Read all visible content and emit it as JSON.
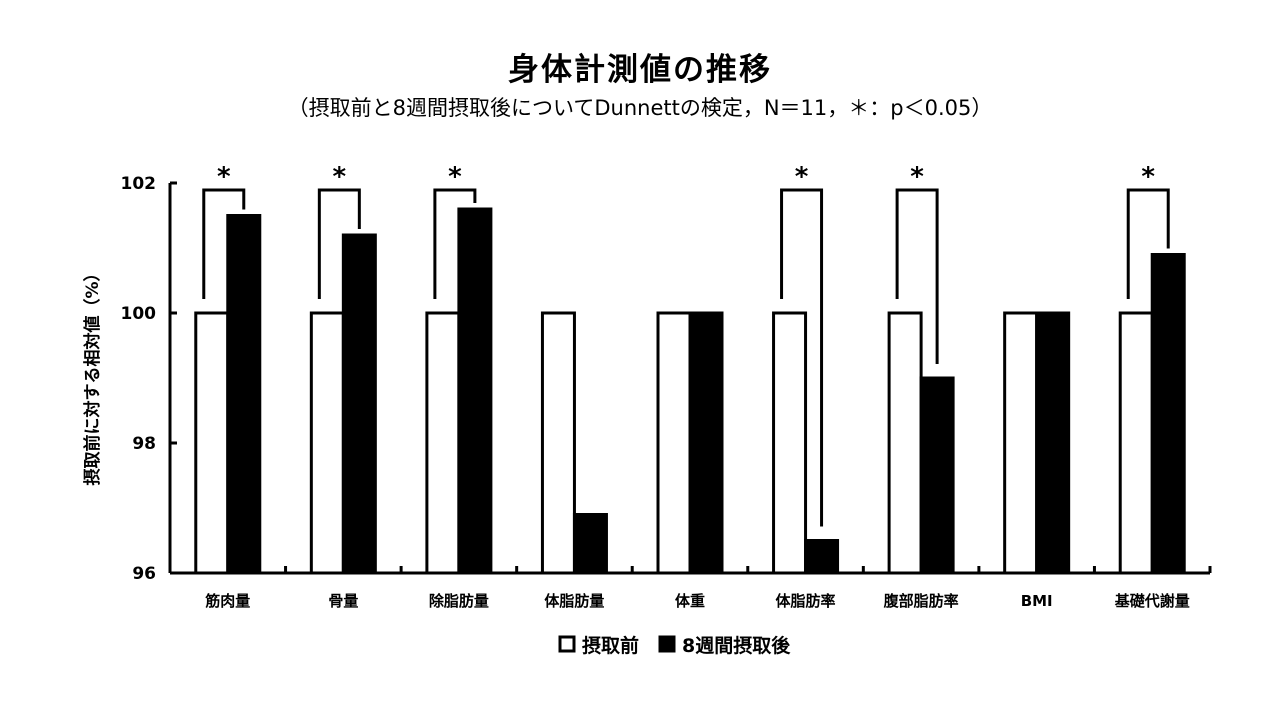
{
  "chart_data": {
    "type": "bar",
    "title": "身体計測値の推移",
    "subtitle": "（摂取前と8週間摂取後についてDunnettの検定，N＝11，＊：p＜0.05）",
    "ylabel": "摂取前に対する相対値（%）",
    "xlabel": "",
    "ylim": [
      96,
      102
    ],
    "yticks": [
      96,
      98,
      100,
      102
    ],
    "categories": [
      "筋肉量",
      "骨量",
      "除脂肪量",
      "体脂肪量",
      "体重",
      "体脂肪率",
      "腹部脂肪率",
      "BMI",
      "基礎代謝量"
    ],
    "series": [
      {
        "name": "摂取前",
        "color": "#ffffff",
        "values": [
          100,
          100,
          100,
          100,
          100,
          100,
          100,
          100,
          100
        ]
      },
      {
        "name": "8週間摂取後",
        "color": "#000000",
        "values": [
          101.5,
          101.2,
          101.6,
          96.9,
          100,
          96.5,
          99.0,
          100,
          100.9
        ]
      }
    ],
    "significance": [
      true,
      true,
      true,
      false,
      false,
      true,
      true,
      false,
      true
    ],
    "significance_marker": "*",
    "legend": {
      "position": "bottom",
      "items": [
        {
          "symbol": "□",
          "label": "摂取前"
        },
        {
          "symbol": "■",
          "label": "8週間摂取後"
        }
      ]
    },
    "grid": false
  }
}
